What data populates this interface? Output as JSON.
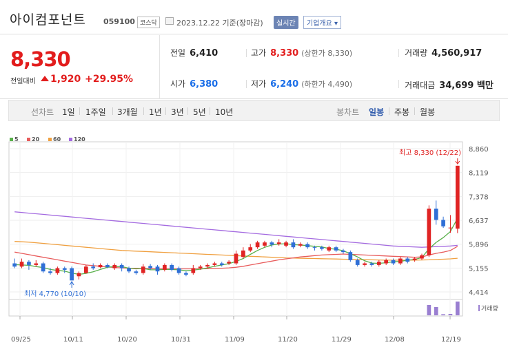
{
  "header": {
    "name": "아이컴포넌트",
    "code": "059100",
    "market": "코스닥",
    "date": "2023.12.22  기준(장마감)",
    "realtime": "실시간",
    "company_info": "기업개요 ▾"
  },
  "quote": {
    "price": "8,330",
    "change_label": "전일대비",
    "change": "1,920",
    "change_rate": "+29.95%",
    "prev_close": {
      "label": "전일",
      "value": "6,410"
    },
    "high": {
      "label": "고가",
      "value": "8,330",
      "sub": "(상한가 8,330)"
    },
    "volume": {
      "label": "거래량",
      "value": "4,560,917"
    },
    "open": {
      "label": "시가",
      "value": "6,380"
    },
    "low": {
      "label": "저가",
      "value": "6,240",
      "sub": "(하한가 4,490)"
    },
    "amount": {
      "label": "거래대금",
      "value": "34,699 백만"
    }
  },
  "tabs": {
    "line_label": "선차트",
    "periods": [
      "1일",
      "1주일",
      "3개월",
      "1년",
      "3년",
      "5년",
      "10년"
    ],
    "candle_label": "봉차트",
    "candle_periods": [
      "일봉",
      "주봉",
      "월봉"
    ],
    "candle_selected": "일봉"
  },
  "legend": [
    "5",
    "20",
    "60",
    "120"
  ],
  "colors": {
    "up": "#e02424",
    "down": "#2f6fd6",
    "ma5": "#58b04a",
    "ma20": "#e85c5c",
    "ma60": "#f0a040",
    "ma120": "#a46be0",
    "volume": "#9a7fd1"
  },
  "chart_data": {
    "type": "candlestick",
    "y_ticks": [
      "8,860",
      "8,119",
      "7,378",
      "6,637",
      "5,896",
      "5,155",
      "4,414"
    ],
    "ylim": [
      4414,
      8860
    ],
    "x_labels": [
      "09/25",
      "10/11",
      "10/20",
      "10/31",
      "11/09",
      "11/20",
      "11/29",
      "12/08",
      "12/19"
    ],
    "high_annotation": "최고 8,330 (12/22)",
    "low_annotation": "최저 4,770 (10/10)",
    "volume_label": "거래량",
    "candles": [
      {
        "o": 5300,
        "c": 5200,
        "h": 5450,
        "l": 5150
      },
      {
        "o": 5200,
        "c": 5350,
        "h": 5450,
        "l": 5150
      },
      {
        "o": 5350,
        "c": 5250,
        "h": 5400,
        "l": 5100
      },
      {
        "o": 5250,
        "c": 5300,
        "h": 5400,
        "l": 5200
      },
      {
        "o": 5300,
        "c": 5050,
        "h": 5350,
        "l": 5000
      },
      {
        "o": 5050,
        "c": 5000,
        "h": 5150,
        "l": 4950
      },
      {
        "o": 5000,
        "c": 5150,
        "h": 5200,
        "l": 4950
      },
      {
        "o": 5150,
        "c": 5100,
        "h": 5200,
        "l": 5000
      },
      {
        "o": 5150,
        "c": 4770,
        "h": 5200,
        "l": 4770
      },
      {
        "o": 4900,
        "c": 5000,
        "h": 5050,
        "l": 4800
      },
      {
        "o": 5000,
        "c": 5200,
        "h": 5250,
        "l": 4980
      },
      {
        "o": 5200,
        "c": 5150,
        "h": 5300,
        "l": 5100
      },
      {
        "o": 5180,
        "c": 5250,
        "h": 5300,
        "l": 5150
      },
      {
        "o": 5250,
        "c": 5180,
        "h": 5300,
        "l": 5150
      },
      {
        "o": 5150,
        "c": 5250,
        "h": 5300,
        "l": 5100
      },
      {
        "o": 5250,
        "c": 5150,
        "h": 5300,
        "l": 5050
      },
      {
        "o": 5150,
        "c": 5050,
        "h": 5200,
        "l": 5000
      },
      {
        "o": 5050,
        "c": 5000,
        "h": 5100,
        "l": 4950
      },
      {
        "o": 5000,
        "c": 5200,
        "h": 5280,
        "l": 4950
      },
      {
        "o": 5220,
        "c": 5150,
        "h": 5280,
        "l": 5100
      },
      {
        "o": 5200,
        "c": 5050,
        "h": 5250,
        "l": 4950
      },
      {
        "o": 5100,
        "c": 5250,
        "h": 5300,
        "l": 5050
      },
      {
        "o": 5250,
        "c": 5100,
        "h": 5300,
        "l": 5050
      },
      {
        "o": 5150,
        "c": 5000,
        "h": 5200,
        "l": 4950
      },
      {
        "o": 5000,
        "c": 4950,
        "h": 5050,
        "l": 4900
      },
      {
        "o": 5000,
        "c": 5150,
        "h": 5250,
        "l": 4950
      },
      {
        "o": 5150,
        "c": 5200,
        "h": 5250,
        "l": 5100
      },
      {
        "o": 5200,
        "c": 5250,
        "h": 5300,
        "l": 5150
      },
      {
        "o": 5250,
        "c": 5300,
        "h": 5350,
        "l": 5200
      },
      {
        "o": 5300,
        "c": 5250,
        "h": 5350,
        "l": 5200
      },
      {
        "o": 5300,
        "c": 5350,
        "h": 5400,
        "l": 5250
      },
      {
        "o": 5300,
        "c": 5600,
        "h": 5700,
        "l": 5250
      },
      {
        "o": 5500,
        "c": 5700,
        "h": 5800,
        "l": 5450
      },
      {
        "o": 5700,
        "c": 5800,
        "h": 5900,
        "l": 5650
      },
      {
        "o": 5800,
        "c": 5950,
        "h": 6000,
        "l": 5750
      },
      {
        "o": 5850,
        "c": 5950,
        "h": 6000,
        "l": 5800
      },
      {
        "o": 5950,
        "c": 5880,
        "h": 6000,
        "l": 5800
      },
      {
        "o": 5900,
        "c": 5950,
        "h": 6050,
        "l": 5850
      },
      {
        "o": 5850,
        "c": 5950,
        "h": 6000,
        "l": 5800
      },
      {
        "o": 5950,
        "c": 5800,
        "h": 6050,
        "l": 5750
      },
      {
        "o": 5850,
        "c": 5900,
        "h": 5950,
        "l": 5800
      },
      {
        "o": 5900,
        "c": 5800,
        "h": 5950,
        "l": 5750
      },
      {
        "o": 5800,
        "c": 5780,
        "h": 5850,
        "l": 5700
      },
      {
        "o": 5800,
        "c": 5750,
        "h": 5850,
        "l": 5700
      },
      {
        "o": 5700,
        "c": 5800,
        "h": 5850,
        "l": 5650
      },
      {
        "o": 5800,
        "c": 5700,
        "h": 5850,
        "l": 5650
      },
      {
        "o": 5700,
        "c": 5650,
        "h": 5750,
        "l": 5600
      },
      {
        "o": 5650,
        "c": 5400,
        "h": 5700,
        "l": 5350
      },
      {
        "o": 5400,
        "c": 5250,
        "h": 5450,
        "l": 5200
      },
      {
        "o": 5250,
        "c": 5300,
        "h": 5350,
        "l": 5200
      },
      {
        "o": 5300,
        "c": 5250,
        "h": 5350,
        "l": 5200
      },
      {
        "o": 5250,
        "c": 5350,
        "h": 5400,
        "l": 5200
      },
      {
        "o": 5300,
        "c": 5400,
        "h": 5450,
        "l": 5250
      },
      {
        "o": 5400,
        "c": 5300,
        "h": 5450,
        "l": 5250
      },
      {
        "o": 5300,
        "c": 5450,
        "h": 5500,
        "l": 5250
      },
      {
        "o": 5450,
        "c": 5350,
        "h": 5500,
        "l": 5300
      },
      {
        "o": 5400,
        "c": 5450,
        "h": 5500,
        "l": 5350
      },
      {
        "o": 5450,
        "c": 5550,
        "h": 5600,
        "l": 5400
      },
      {
        "o": 5550,
        "c": 7000,
        "h": 7100,
        "l": 5500
      },
      {
        "o": 7000,
        "c": 6650,
        "h": 7250,
        "l": 6500
      },
      {
        "o": 6650,
        "c": 6450,
        "h": 6750,
        "l": 6400
      },
      {
        "o": 6400,
        "c": 6410,
        "h": 6800,
        "l": 6250
      },
      {
        "o": 6380,
        "c": 8330,
        "h": 8330,
        "l": 6240
      }
    ],
    "ma5": [
      5260,
      5250,
      5240,
      5200,
      5170,
      5110,
      5080,
      5060,
      5000,
      4960,
      4990,
      5040,
      5110,
      5180,
      5200,
      5200,
      5150,
      5130,
      5140,
      5100,
      5100,
      5110,
      5110,
      5100,
      5070,
      5090,
      5120,
      5160,
      5210,
      5250,
      5290,
      5360,
      5450,
      5580,
      5700,
      5800,
      5870,
      5900,
      5910,
      5880,
      5870,
      5850,
      5830,
      5810,
      5760,
      5740,
      5690,
      5600,
      5500,
      5380,
      5310,
      5300,
      5320,
      5350,
      5360,
      5400,
      5420,
      5480,
      5750,
      5950,
      6100,
      6290,
      6700
    ],
    "ma20": [
      5650,
      5610,
      5570,
      5530,
      5490,
      5450,
      5410,
      5370,
      5330,
      5290,
      5250,
      5230,
      5210,
      5190,
      5170,
      5160,
      5150,
      5150,
      5140,
      5140,
      5130,
      5130,
      5130,
      5130,
      5130,
      5130,
      5130,
      5135,
      5140,
      5150,
      5160,
      5180,
      5210,
      5250,
      5290,
      5330,
      5370,
      5410,
      5440,
      5470,
      5500,
      5520,
      5540,
      5560,
      5570,
      5580,
      5590,
      5580,
      5570,
      5560,
      5550,
      5540,
      5530,
      5520,
      5510,
      5500,
      5490,
      5500,
      5560,
      5610,
      5650,
      5700,
      5830
    ],
    "ma60": [
      5980,
      5970,
      5960,
      5940,
      5920,
      5900,
      5880,
      5860,
      5840,
      5820,
      5800,
      5780,
      5760,
      5740,
      5720,
      5700,
      5690,
      5680,
      5670,
      5660,
      5650,
      5640,
      5630,
      5620,
      5610,
      5600,
      5590,
      5580,
      5570,
      5560,
      5550,
      5540,
      5530,
      5520,
      5510,
      5500,
      5490,
      5480,
      5470,
      5465,
      5460,
      5455,
      5450,
      5445,
      5440,
      5435,
      5430,
      5425,
      5420,
      5415,
      5410,
      5405,
      5400,
      5400,
      5400,
      5400,
      5400,
      5405,
      5410,
      5420,
      5430,
      5440,
      5460
    ],
    "ma120": [
      6900,
      6880,
      6860,
      6840,
      6820,
      6800,
      6780,
      6760,
      6740,
      6720,
      6700,
      6680,
      6660,
      6640,
      6620,
      6600,
      6580,
      6560,
      6540,
      6520,
      6500,
      6480,
      6460,
      6440,
      6420,
      6400,
      6380,
      6360,
      6340,
      6320,
      6300,
      6280,
      6260,
      6240,
      6220,
      6200,
      6180,
      6160,
      6140,
      6120,
      6100,
      6080,
      6060,
      6040,
      6020,
      6000,
      5980,
      5960,
      5940,
      5920,
      5900,
      5880,
      5860,
      5840,
      5830,
      5820,
      5810,
      5800,
      5810,
      5820,
      5830,
      5840,
      5860
    ],
    "volume": [
      1,
      1,
      1,
      1,
      1,
      1,
      1,
      1,
      1,
      1,
      1,
      1,
      1,
      1,
      1,
      1,
      1,
      1,
      1,
      1,
      1,
      1,
      1,
      1,
      1,
      1,
      1,
      1,
      1,
      1,
      1,
      1,
      1,
      1,
      1,
      1,
      1,
      1,
      1,
      1,
      1,
      1,
      1,
      1,
      1,
      1,
      1,
      1,
      1,
      1,
      1,
      1,
      1,
      1,
      1,
      1,
      1,
      1,
      75,
      60,
      8,
      10,
      100
    ]
  }
}
